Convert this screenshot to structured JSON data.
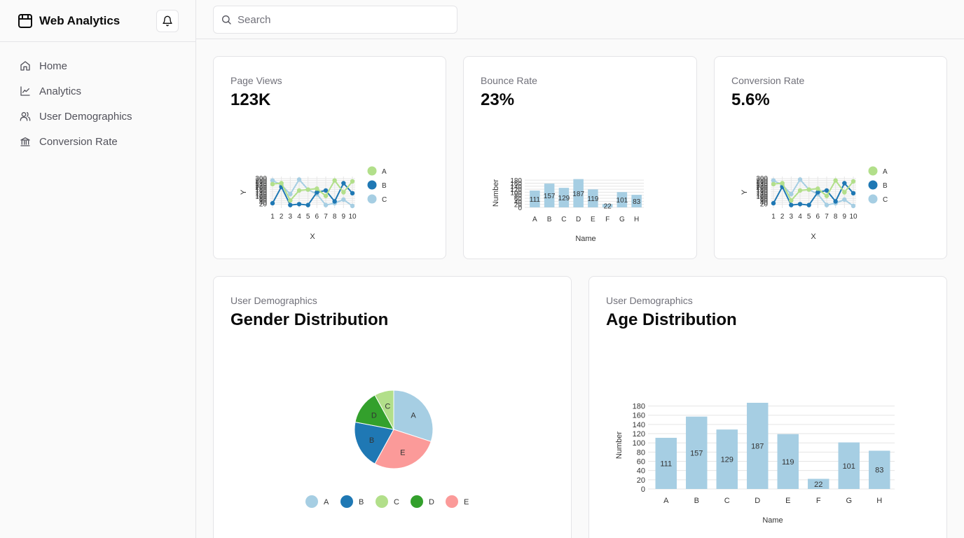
{
  "app": {
    "title": "Web Analytics"
  },
  "sidebar": {
    "items": [
      {
        "label": "Home",
        "icon": "home-icon"
      },
      {
        "label": "Analytics",
        "icon": "line-chart-icon"
      },
      {
        "label": "User Demographics",
        "icon": "users-icon"
      },
      {
        "label": "Conversion Rate",
        "icon": "bank-icon"
      }
    ]
  },
  "header": {
    "search_placeholder": "Search"
  },
  "colors": {
    "light_blue": "#a6cee3",
    "dark_blue": "#1f78b4",
    "light_green": "#b2df8a",
    "dark_green": "#33a02c",
    "pink": "#fb9a99"
  },
  "cards": {
    "page_views": {
      "label": "Page Views",
      "value": "123K"
    },
    "bounce_rate": {
      "label": "Bounce Rate",
      "value": "23%"
    },
    "conversion_rate": {
      "label": "Conversion Rate",
      "value": "5.6%"
    },
    "gender": {
      "label": "User Demographics",
      "title": "Gender Distribution"
    },
    "age": {
      "label": "User Demographics",
      "title": "Age Distribution"
    }
  },
  "chart_data": [
    {
      "id": "page-views-chart",
      "type": "line",
      "xlabel": "X",
      "ylabel": "Y",
      "x": [
        1,
        2,
        3,
        4,
        5,
        6,
        7,
        8,
        9,
        10
      ],
      "ylim": [
        0,
        300
      ],
      "yticks": [
        20,
        40,
        60,
        80,
        100,
        120,
        140,
        160,
        180,
        200,
        220,
        240,
        260,
        280,
        300
      ],
      "series": [
        {
          "name": "A",
          "color": "#b2df8a",
          "values": [
            240,
            250,
            60,
            170,
            180,
            190,
            110,
            280,
            150,
            270
          ]
        },
        {
          "name": "B",
          "color": "#1f78b4",
          "values": [
            30,
            210,
            10,
            20,
            10,
            150,
            170,
            50,
            250,
            140
          ]
        },
        {
          "name": "C",
          "color": "#a6cee3",
          "values": [
            280,
            230,
            130,
            290,
            180,
            130,
            10,
            30,
            70,
            0
          ]
        }
      ],
      "legend": "right"
    },
    {
      "id": "bounce-rate-chart",
      "type": "bar",
      "xlabel": "Name",
      "ylabel": "Number",
      "categories": [
        "A",
        "B",
        "C",
        "D",
        "E",
        "F",
        "G",
        "H"
      ],
      "values": [
        111,
        157,
        129,
        187,
        119,
        22,
        101,
        83
      ],
      "ylim": [
        0,
        190
      ],
      "yticks": [
        0,
        20,
        40,
        60,
        80,
        100,
        120,
        140,
        160,
        180
      ],
      "color": "#a6cee3"
    },
    {
      "id": "conversion-rate-chart",
      "type": "line",
      "xlabel": "X",
      "ylabel": "Y",
      "x": [
        1,
        2,
        3,
        4,
        5,
        6,
        7,
        8,
        9,
        10
      ],
      "ylim": [
        0,
        300
      ],
      "yticks": [
        20,
        40,
        60,
        80,
        100,
        120,
        140,
        160,
        180,
        200,
        220,
        240,
        260,
        280,
        300
      ],
      "series": [
        {
          "name": "A",
          "color": "#b2df8a",
          "values": [
            240,
            250,
            60,
            170,
            180,
            190,
            110,
            280,
            150,
            270
          ]
        },
        {
          "name": "B",
          "color": "#1f78b4",
          "values": [
            30,
            210,
            10,
            20,
            10,
            150,
            170,
            50,
            250,
            140
          ]
        },
        {
          "name": "C",
          "color": "#a6cee3",
          "values": [
            280,
            230,
            130,
            290,
            180,
            130,
            10,
            30,
            70,
            0
          ]
        }
      ],
      "legend": "right"
    },
    {
      "id": "gender-chart",
      "type": "pie",
      "slices": [
        {
          "label": "A",
          "value": 30,
          "color": "#a6cee3"
        },
        {
          "label": "E",
          "value": 28,
          "color": "#fb9a99"
        },
        {
          "label": "B",
          "value": 20,
          "color": "#1f78b4"
        },
        {
          "label": "D",
          "value": 14,
          "color": "#33a02c"
        },
        {
          "label": "C",
          "value": 8,
          "color": "#b2df8a"
        }
      ],
      "legend_order": [
        "A",
        "B",
        "C",
        "D",
        "E"
      ],
      "legend": "bottom"
    },
    {
      "id": "age-chart",
      "type": "bar",
      "xlabel": "Name",
      "ylabel": "Number",
      "categories": [
        "A",
        "B",
        "C",
        "D",
        "E",
        "F",
        "G",
        "H"
      ],
      "values": [
        111,
        157,
        129,
        187,
        119,
        22,
        101,
        83
      ],
      "ylim": [
        0,
        190
      ],
      "yticks": [
        0,
        20,
        40,
        60,
        80,
        100,
        120,
        140,
        160,
        180
      ],
      "color": "#a6cee3"
    }
  ]
}
